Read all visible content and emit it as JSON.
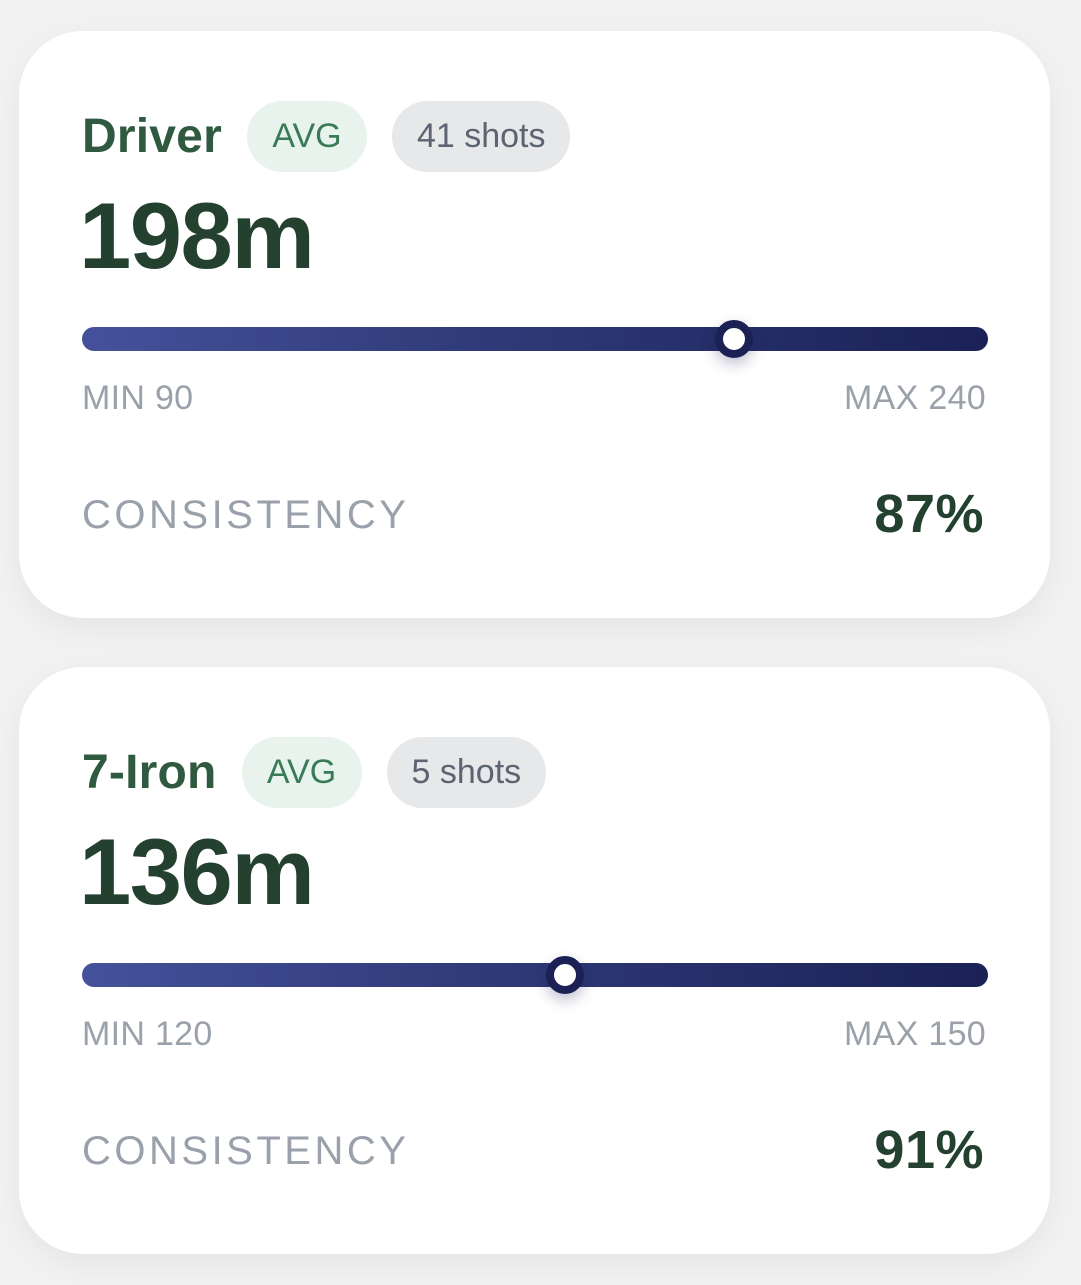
{
  "colors": {
    "accent_green": "#2f5a40",
    "value_dark_green": "#24402f",
    "avg_pill_bg": "#e8f3ed",
    "track_start": "#45519a",
    "track_end": "#1b2155",
    "muted_text": "#9aa1ab"
  },
  "clubs": [
    {
      "name": "Driver",
      "avg_badge": "AVG",
      "shots": "41 shots",
      "average": "198m",
      "min_label": "MIN 90",
      "max_label": "MAX 240",
      "min": 90,
      "max": 240,
      "avg_value": 198,
      "consistency_label": "CONSISTENCY",
      "consistency": "87%"
    },
    {
      "name": "7-Iron",
      "avg_badge": "AVG",
      "shots": "5 shots",
      "average": "136m",
      "min_label": "MIN 120",
      "max_label": "MAX 150",
      "min": 120,
      "max": 150,
      "avg_value": 136,
      "consistency_label": "CONSISTENCY",
      "consistency": "91%"
    }
  ]
}
